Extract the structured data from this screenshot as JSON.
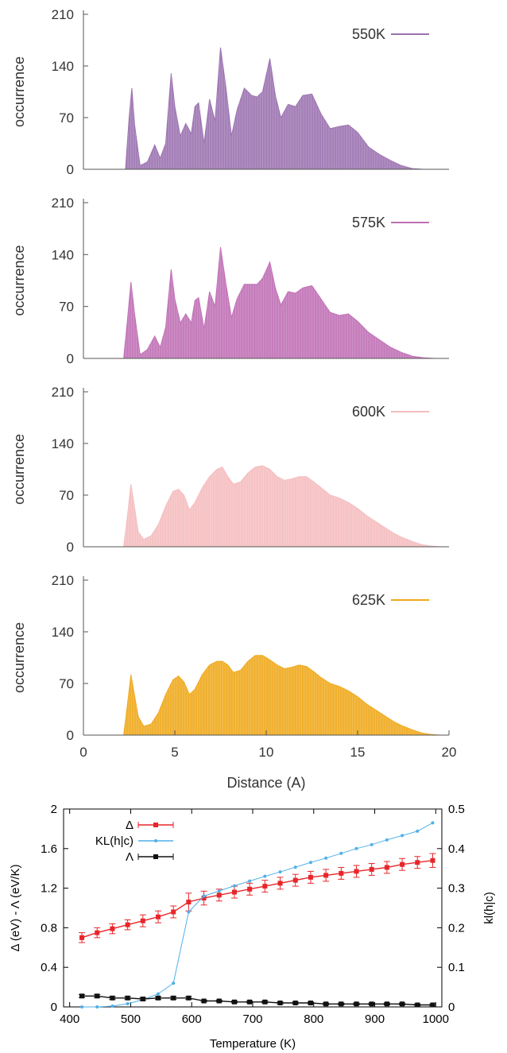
{
  "chart_data": [
    {
      "type": "area",
      "ylabel": "occurrence",
      "yticks": [
        0,
        70,
        140,
        210
      ],
      "ylim": [
        0,
        210
      ],
      "xlim": [
        0,
        20
      ],
      "legend": "top-right",
      "series": [
        {
          "name": "550K",
          "color": "#9b72b0",
          "x": [
            2.3,
            2.5,
            2.65,
            2.8,
            3.1,
            3.5,
            3.9,
            4.2,
            4.5,
            4.8,
            5.0,
            5.3,
            5.6,
            5.9,
            6.1,
            6.3,
            6.6,
            6.9,
            7.2,
            7.5,
            7.8,
            8.1,
            8.4,
            8.8,
            9.2,
            9.5,
            9.8,
            10.2,
            10.5,
            10.8,
            11.2,
            11.6,
            12.0,
            12.5,
            13.0,
            13.5,
            14.0,
            14.5,
            15.0,
            15.6,
            16.2,
            16.8,
            17.4,
            18.0,
            18.6,
            19.2,
            19.6
          ],
          "y": [
            0,
            70,
            110,
            60,
            5,
            10,
            33,
            15,
            35,
            130,
            85,
            45,
            62,
            48,
            85,
            90,
            35,
            95,
            65,
            165,
            110,
            45,
            80,
            110,
            100,
            98,
            105,
            150,
            100,
            70,
            88,
            85,
            100,
            102,
            75,
            55,
            58,
            60,
            50,
            30,
            20,
            12,
            5,
            1,
            0,
            0,
            0
          ]
        },
        {
          "name": "575K",
          "color": "#c06fb5",
          "x": [
            2.2,
            2.4,
            2.6,
            2.8,
            3.1,
            3.5,
            3.9,
            4.2,
            4.5,
            4.8,
            5.0,
            5.3,
            5.6,
            5.9,
            6.1,
            6.3,
            6.6,
            6.9,
            7.2,
            7.5,
            7.8,
            8.1,
            8.4,
            8.8,
            9.2,
            9.5,
            9.8,
            10.2,
            10.5,
            10.8,
            11.2,
            11.6,
            12.0,
            12.5,
            13.0,
            13.5,
            14.0,
            14.5,
            15.0,
            15.6,
            16.2,
            16.8,
            17.4,
            18.0,
            18.6,
            19.2,
            19.6
          ],
          "y": [
            0,
            50,
            103,
            60,
            5,
            12,
            30,
            15,
            42,
            120,
            80,
            48,
            60,
            48,
            78,
            82,
            40,
            90,
            70,
            150,
            100,
            55,
            80,
            100,
            100,
            100,
            108,
            130,
            95,
            72,
            90,
            88,
            95,
            98,
            80,
            62,
            58,
            60,
            50,
            35,
            25,
            15,
            8,
            3,
            1,
            0,
            0
          ]
        },
        {
          "name": "600K",
          "color": "#f5bcbf",
          "x": [
            2.2,
            2.4,
            2.6,
            2.75,
            3.0,
            3.3,
            3.7,
            4.1,
            4.5,
            4.9,
            5.2,
            5.5,
            5.8,
            6.1,
            6.5,
            6.9,
            7.3,
            7.6,
            7.9,
            8.2,
            8.6,
            9.0,
            9.4,
            9.8,
            10.2,
            10.6,
            11.0,
            11.4,
            11.8,
            12.2,
            12.6,
            13.0,
            13.5,
            14.0,
            14.5,
            15.0,
            15.5,
            16.0,
            16.5,
            17.0,
            17.5,
            18.0,
            18.5,
            19.0,
            19.5,
            19.8
          ],
          "y": [
            0,
            40,
            85,
            60,
            20,
            10,
            15,
            30,
            55,
            75,
            78,
            70,
            50,
            60,
            80,
            95,
            105,
            108,
            95,
            85,
            88,
            100,
            108,
            110,
            105,
            95,
            90,
            92,
            95,
            95,
            88,
            80,
            70,
            66,
            60,
            52,
            42,
            34,
            26,
            18,
            12,
            7,
            3,
            1,
            0,
            0
          ]
        },
        {
          "name": "625K",
          "color": "#f0a91a",
          "x": [
            2.2,
            2.4,
            2.6,
            2.75,
            3.0,
            3.3,
            3.7,
            4.1,
            4.5,
            4.9,
            5.2,
            5.5,
            5.8,
            6.1,
            6.5,
            6.9,
            7.3,
            7.6,
            7.9,
            8.2,
            8.6,
            9.0,
            9.4,
            9.8,
            10.2,
            10.6,
            11.0,
            11.4,
            11.8,
            12.2,
            12.6,
            13.0,
            13.5,
            14.0,
            14.5,
            15.0,
            15.5,
            16.0,
            16.5,
            17.0,
            17.5,
            18.0,
            18.5,
            19.0,
            19.5,
            19.8
          ],
          "y": [
            0,
            40,
            82,
            60,
            25,
            12,
            15,
            30,
            55,
            75,
            80,
            72,
            55,
            62,
            82,
            95,
            100,
            100,
            95,
            85,
            88,
            100,
            108,
            108,
            102,
            95,
            90,
            92,
            95,
            93,
            86,
            78,
            70,
            66,
            60,
            52,
            42,
            34,
            26,
            18,
            12,
            7,
            3,
            1,
            0,
            0
          ]
        }
      ]
    },
    {
      "type": "line",
      "xlabel": "Distance (A)",
      "xticks": [
        0,
        5,
        10,
        15,
        20
      ]
    },
    {
      "type": "line",
      "xlabel": "Temperature (K)",
      "ylabel": "Δ (eV) - Λ (eV/K)",
      "ylabel_right": "kl(h|c)",
      "xticks": [
        400,
        500,
        600,
        700,
        800,
        900,
        1000
      ],
      "yticks": [
        0,
        0.4,
        0.8,
        1.2,
        1.6,
        2
      ],
      "yticks_right": [
        0,
        0.1,
        0.2,
        0.3,
        0.4,
        0.5
      ],
      "xlim": [
        390,
        1010
      ],
      "ylim": [
        0,
        2
      ],
      "ylim_right": [
        0,
        0.5
      ],
      "legend": "top-left",
      "x": [
        420,
        445,
        470,
        495,
        520,
        545,
        570,
        595,
        620,
        645,
        670,
        695,
        720,
        745,
        770,
        795,
        820,
        845,
        870,
        895,
        920,
        945,
        970,
        995
      ],
      "series": [
        {
          "name": "Δ",
          "color": "#e8262a",
          "axis": "left",
          "marker": "square",
          "errorbars": true,
          "y": [
            0.7,
            0.75,
            0.79,
            0.83,
            0.87,
            0.91,
            0.96,
            1.06,
            1.1,
            1.13,
            1.16,
            1.19,
            1.22,
            1.25,
            1.28,
            1.31,
            1.33,
            1.35,
            1.37,
            1.39,
            1.41,
            1.44,
            1.46,
            1.48
          ],
          "err": [
            0.05,
            0.05,
            0.05,
            0.05,
            0.06,
            0.06,
            0.06,
            0.09,
            0.07,
            0.06,
            0.06,
            0.06,
            0.06,
            0.06,
            0.06,
            0.06,
            0.06,
            0.06,
            0.06,
            0.06,
            0.06,
            0.06,
            0.06,
            0.07
          ]
        },
        {
          "name": "KL(h|c)",
          "color": "#4fb0e8",
          "axis": "right",
          "marker": "dot",
          "errorbars": false,
          "y": [
            0.0,
            0.0,
            0.002,
            0.008,
            0.018,
            0.033,
            0.06,
            0.24,
            0.28,
            0.293,
            0.306,
            0.318,
            0.33,
            0.341,
            0.353,
            0.365,
            0.376,
            0.388,
            0.4,
            0.41,
            0.422,
            0.433,
            0.444,
            0.465
          ]
        },
        {
          "name": "Λ",
          "color": "#111111",
          "axis": "left",
          "marker": "square",
          "errorbars": true,
          "y": [
            0.11,
            0.11,
            0.09,
            0.09,
            0.08,
            0.09,
            0.09,
            0.09,
            0.06,
            0.06,
            0.05,
            0.05,
            0.05,
            0.04,
            0.04,
            0.04,
            0.03,
            0.03,
            0.03,
            0.03,
            0.03,
            0.03,
            0.02,
            0.02
          ],
          "err": [
            0.015,
            0.015,
            0.015,
            0.015,
            0.015,
            0.015,
            0.015,
            0.015,
            0.01,
            0.01,
            0.01,
            0.01,
            0.01,
            0.01,
            0.01,
            0.01,
            0.01,
            0.01,
            0.01,
            0.01,
            0.01,
            0.01,
            0.01,
            0.01
          ]
        }
      ]
    }
  ]
}
